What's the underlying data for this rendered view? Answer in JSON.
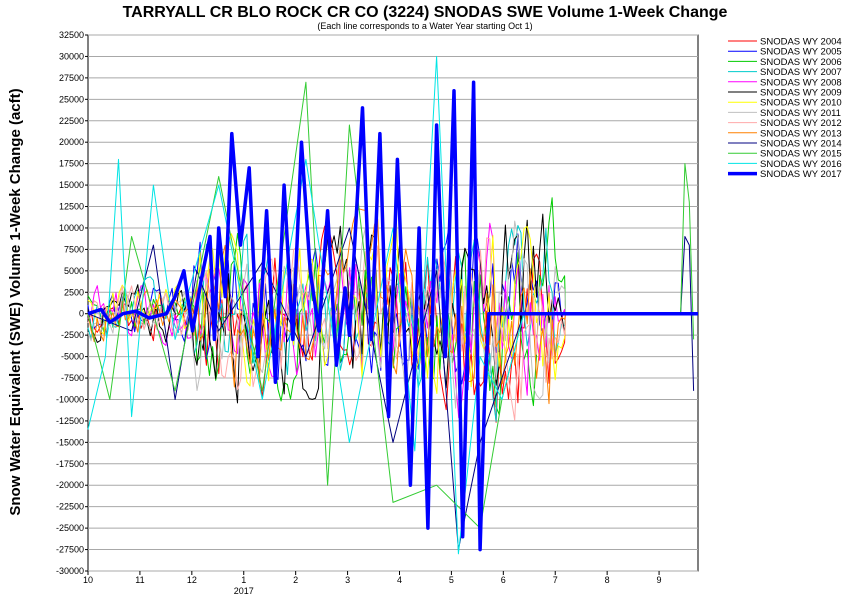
{
  "chart_data": {
    "type": "line",
    "title": "TARRYALL CR BLO ROCK CR CO (3224) SNODAS SWE Volume 1-Week Change",
    "subtitle": "(Each line corresponds to a Water Year starting Oct 1)",
    "ylabel": "Snow Water Equivalent (SWE) Volume 1-Week Change (acft)",
    "xlabel": "",
    "ylim": [
      -30000,
      32500
    ],
    "y_ticks": [
      "32500",
      "30000",
      "27500",
      "25000",
      "22500",
      "20000",
      "17500",
      "15000",
      "12500",
      "10000",
      "7500",
      "5000",
      "2500",
      "0",
      "-2500",
      "-5000",
      "-7500",
      "-10000",
      "-12500",
      "-15000",
      "-17500",
      "-20000",
      "-22500",
      "-25000",
      "-27500",
      "-30000"
    ],
    "x_ticks": [
      "10",
      "11",
      "12",
      "1",
      "2",
      "3",
      "4",
      "5",
      "6",
      "7",
      "8",
      "9"
    ],
    "x_year_label": "2017",
    "grid": true,
    "legend_position": "right",
    "series": [
      {
        "name": "SNODAS WY 2004",
        "color": "#ff0000",
        "width": 1
      },
      {
        "name": "SNODAS WY 2005",
        "color": "#0000ff",
        "width": 1
      },
      {
        "name": "SNODAS WY 2006",
        "color": "#00cc00",
        "width": 1
      },
      {
        "name": "SNODAS WY 2007",
        "color": "#00cccc",
        "width": 1
      },
      {
        "name": "SNODAS WY 2008",
        "color": "#ff00ff",
        "width": 1
      },
      {
        "name": "SNODAS WY 2009",
        "color": "#000000",
        "width": 1
      },
      {
        "name": "SNODAS WY 2010",
        "color": "#ffff00",
        "width": 1
      },
      {
        "name": "SNODAS WY 2011",
        "color": "#c0c0c0",
        "width": 1
      },
      {
        "name": "SNODAS WY 2012",
        "color": "#ffaaaa",
        "width": 1
      },
      {
        "name": "SNODAS WY 2013",
        "color": "#ff8000",
        "width": 1
      },
      {
        "name": "SNODAS WY 2014",
        "color": "#000080",
        "width": 1
      },
      {
        "name": "SNODAS WY 2015",
        "color": "#33cc33",
        "width": 1
      },
      {
        "name": "SNODAS WY 2016",
        "color": "#00e5e5",
        "width": 1
      },
      {
        "name": "SNODAS WY 2017",
        "color": "#0000ff",
        "width": 3.5
      }
    ],
    "wy2017_points": [
      [
        10.0,
        0
      ],
      [
        10.3,
        500
      ],
      [
        10.5,
        -1000
      ],
      [
        10.8,
        0
      ],
      [
        11.1,
        300
      ],
      [
        11.4,
        -500
      ],
      [
        11.8,
        0
      ],
      [
        12.0,
        2000
      ],
      [
        12.2,
        5000
      ],
      [
        12.4,
        -2000
      ],
      [
        12.6,
        4000
      ],
      [
        12.8,
        9000
      ],
      [
        12.9,
        -3000
      ],
      [
        13.0,
        10000
      ],
      [
        13.15,
        2000
      ],
      [
        13.3,
        21000
      ],
      [
        13.5,
        8000
      ],
      [
        13.7,
        17000
      ],
      [
        13.9,
        -5000
      ],
      [
        14.1,
        12000
      ],
      [
        14.3,
        -8000
      ],
      [
        14.5,
        15000
      ],
      [
        14.7,
        -3000
      ],
      [
        14.9,
        20000
      ],
      [
        15.1,
        5000
      ],
      [
        15.3,
        -2000
      ],
      [
        15.5,
        12000
      ],
      [
        15.7,
        -6000
      ],
      [
        15.9,
        3000
      ],
      [
        16.0,
        -2500
      ],
      [
        16.3,
        24000
      ],
      [
        16.5,
        -3000
      ],
      [
        16.7,
        21000
      ],
      [
        16.9,
        -12000
      ],
      [
        17.1,
        18000
      ],
      [
        17.4,
        -20000
      ],
      [
        17.6,
        10000
      ],
      [
        17.8,
        -25000
      ],
      [
        18.0,
        22000
      ],
      [
        18.2,
        -5000
      ],
      [
        18.4,
        26000
      ],
      [
        18.6,
        -26000
      ],
      [
        18.75,
        5000
      ],
      [
        18.85,
        27000
      ],
      [
        19.0,
        -27500
      ],
      [
        19.1,
        -10000
      ],
      [
        19.2,
        0
      ],
      [
        19.6,
        0
      ],
      [
        20.0,
        0
      ],
      [
        21.0,
        0
      ],
      [
        22.0,
        0
      ],
      [
        23.0,
        0
      ],
      [
        23.8,
        0
      ],
      [
        24.0,
        0
      ]
    ],
    "wy2014_points": [
      [
        10.0,
        0
      ],
      [
        11.0,
        -2000
      ],
      [
        11.5,
        8000
      ],
      [
        12.0,
        -10000
      ],
      [
        12.5,
        5000
      ],
      [
        13.0,
        -2000
      ],
      [
        14.0,
        6000
      ],
      [
        15.0,
        -5000
      ],
      [
        16.0,
        10000
      ],
      [
        17.0,
        -15000
      ],
      [
        18.0,
        5000
      ],
      [
        18.5,
        -27500
      ],
      [
        19.0,
        -15000
      ],
      [
        20.0,
        0
      ],
      [
        23.0,
        0
      ],
      [
        23.6,
        0
      ],
      [
        23.7,
        9000
      ],
      [
        23.8,
        8000
      ],
      [
        23.9,
        -9000
      ]
    ],
    "wy2015_points": [
      [
        10.0,
        0
      ],
      [
        10.5,
        -10000
      ],
      [
        11.0,
        9000
      ],
      [
        12.0,
        -9000
      ],
      [
        13.0,
        16000
      ],
      [
        14.0,
        -9000
      ],
      [
        15.0,
        27000
      ],
      [
        15.5,
        -20000
      ],
      [
        16.0,
        22000
      ],
      [
        17.0,
        -22000
      ],
      [
        18.0,
        -20000
      ],
      [
        19.0,
        -25000
      ],
      [
        19.5,
        -10000
      ],
      [
        20.0,
        0
      ],
      [
        23.0,
        0
      ],
      [
        23.6,
        0
      ],
      [
        23.7,
        17500
      ],
      [
        23.8,
        13000
      ],
      [
        23.9,
        -3000
      ]
    ],
    "wy2016_points": [
      [
        10.0,
        -13500
      ],
      [
        10.4,
        -5000
      ],
      [
        10.7,
        18000
      ],
      [
        11.0,
        -12000
      ],
      [
        11.5,
        15000
      ],
      [
        12.0,
        -3000
      ],
      [
        13.0,
        15000
      ],
      [
        14.0,
        -10000
      ],
      [
        15.0,
        18000
      ],
      [
        16.0,
        -15000
      ],
      [
        17.0,
        10000
      ],
      [
        17.5,
        -16000
      ],
      [
        18.0,
        30000
      ],
      [
        18.5,
        -28000
      ],
      [
        19.0,
        -5000
      ],
      [
        19.5,
        -10000
      ],
      [
        20.0,
        0
      ],
      [
        23.0,
        0
      ],
      [
        24.0,
        0
      ]
    ]
  }
}
